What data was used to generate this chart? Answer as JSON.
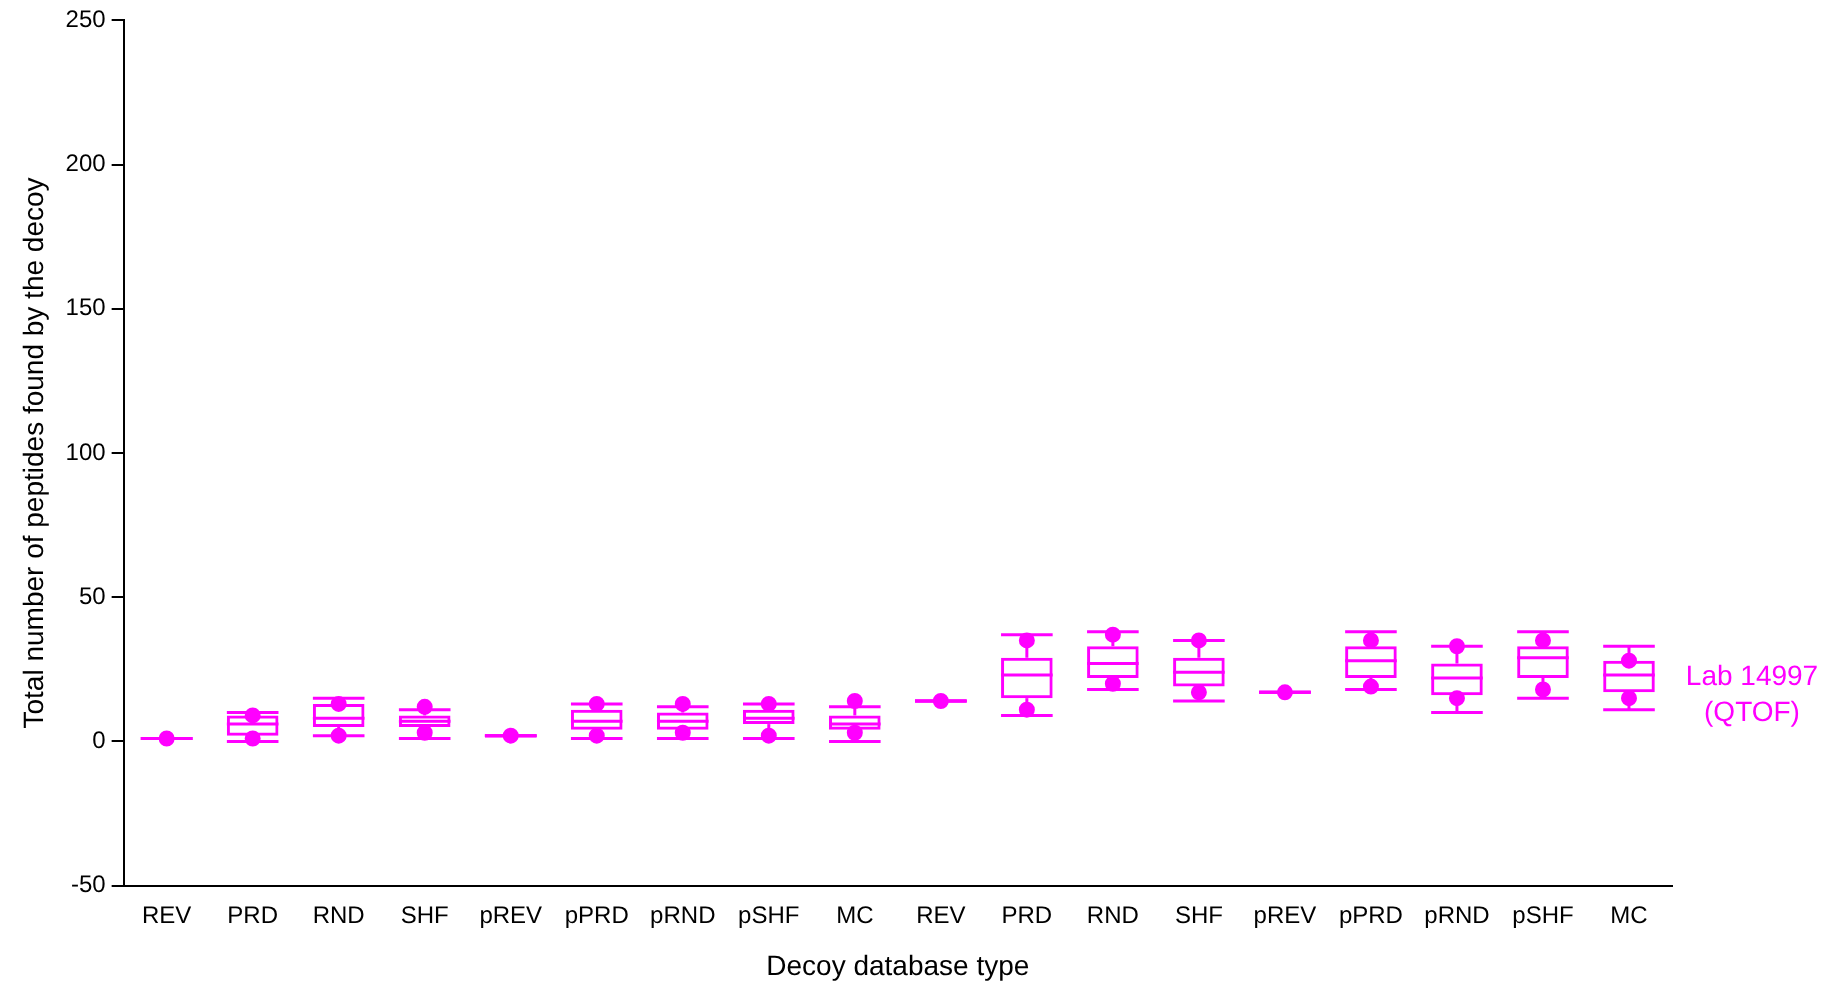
{
  "chart_data": {
    "type": "box",
    "xlabel": "Decoy database type",
    "ylabel": "Total number of peptides found by the decoy",
    "categories": [
      "REV",
      "PRD",
      "RND",
      "SHF",
      "pREV",
      "pPRD",
      "pRND",
      "pSHF",
      "MC",
      "REV",
      "PRD",
      "RND",
      "SHF",
      "pREV",
      "pPRD",
      "pRND",
      "pSHF",
      "MC"
    ],
    "color": "#ff00ff",
    "ylim": [
      -50,
      250
    ],
    "yticks": [
      -50,
      0,
      50,
      100,
      150,
      200,
      250
    ],
    "grid": false,
    "legend": false,
    "annotations": [
      "Lab 14997\n(QTOF)"
    ],
    "boxes": [
      {
        "low": 1,
        "q1": 1,
        "median": 1,
        "q3": 1,
        "high": 1,
        "outliers": [
          1
        ]
      },
      {
        "low": 0,
        "q1": 2,
        "median": 6,
        "q3": 9,
        "high": 10,
        "outliers": [
          9,
          1
        ]
      },
      {
        "low": 2,
        "q1": 5,
        "median": 8,
        "q3": 13,
        "high": 15,
        "outliers": [
          13,
          2
        ]
      },
      {
        "low": 1,
        "q1": 5,
        "median": 7,
        "q3": 9,
        "high": 11,
        "outliers": [
          12,
          3
        ]
      },
      {
        "low": 2,
        "q1": 2,
        "median": 2,
        "q3": 2,
        "high": 2,
        "outliers": [
          2
        ]
      },
      {
        "low": 1,
        "q1": 4,
        "median": 7,
        "q3": 11,
        "high": 13,
        "outliers": [
          13,
          2
        ]
      },
      {
        "low": 1,
        "q1": 4,
        "median": 7,
        "q3": 10,
        "high": 12,
        "outliers": [
          13,
          3
        ]
      },
      {
        "low": 1,
        "q1": 6,
        "median": 8,
        "q3": 11,
        "high": 13,
        "outliers": [
          13,
          2
        ]
      },
      {
        "low": 0,
        "q1": 4,
        "median": 6,
        "q3": 9,
        "high": 12,
        "outliers": [
          14,
          3
        ]
      },
      {
        "low": 14,
        "q1": 14,
        "median": 14,
        "q3": 14,
        "high": 14,
        "outliers": [
          14
        ]
      },
      {
        "low": 9,
        "q1": 15,
        "median": 23,
        "q3": 29,
        "high": 37,
        "outliers": [
          35,
          11
        ]
      },
      {
        "low": 18,
        "q1": 22,
        "median": 27,
        "q3": 33,
        "high": 38,
        "outliers": [
          37,
          20
        ]
      },
      {
        "low": 14,
        "q1": 19,
        "median": 24,
        "q3": 29,
        "high": 35,
        "outliers": [
          35,
          17
        ]
      },
      {
        "low": 17,
        "q1": 17,
        "median": 17,
        "q3": 17,
        "high": 17,
        "outliers": [
          17
        ]
      },
      {
        "low": 18,
        "q1": 22,
        "median": 28,
        "q3": 33,
        "high": 38,
        "outliers": [
          35,
          19
        ]
      },
      {
        "low": 10,
        "q1": 16,
        "median": 22,
        "q3": 27,
        "high": 33,
        "outliers": [
          33,
          15
        ]
      },
      {
        "low": 15,
        "q1": 22,
        "median": 29,
        "q3": 33,
        "high": 38,
        "outliers": [
          35,
          18
        ]
      },
      {
        "low": 11,
        "q1": 17,
        "median": 23,
        "q3": 28,
        "high": 33,
        "outliers": [
          28,
          15
        ]
      }
    ]
  }
}
